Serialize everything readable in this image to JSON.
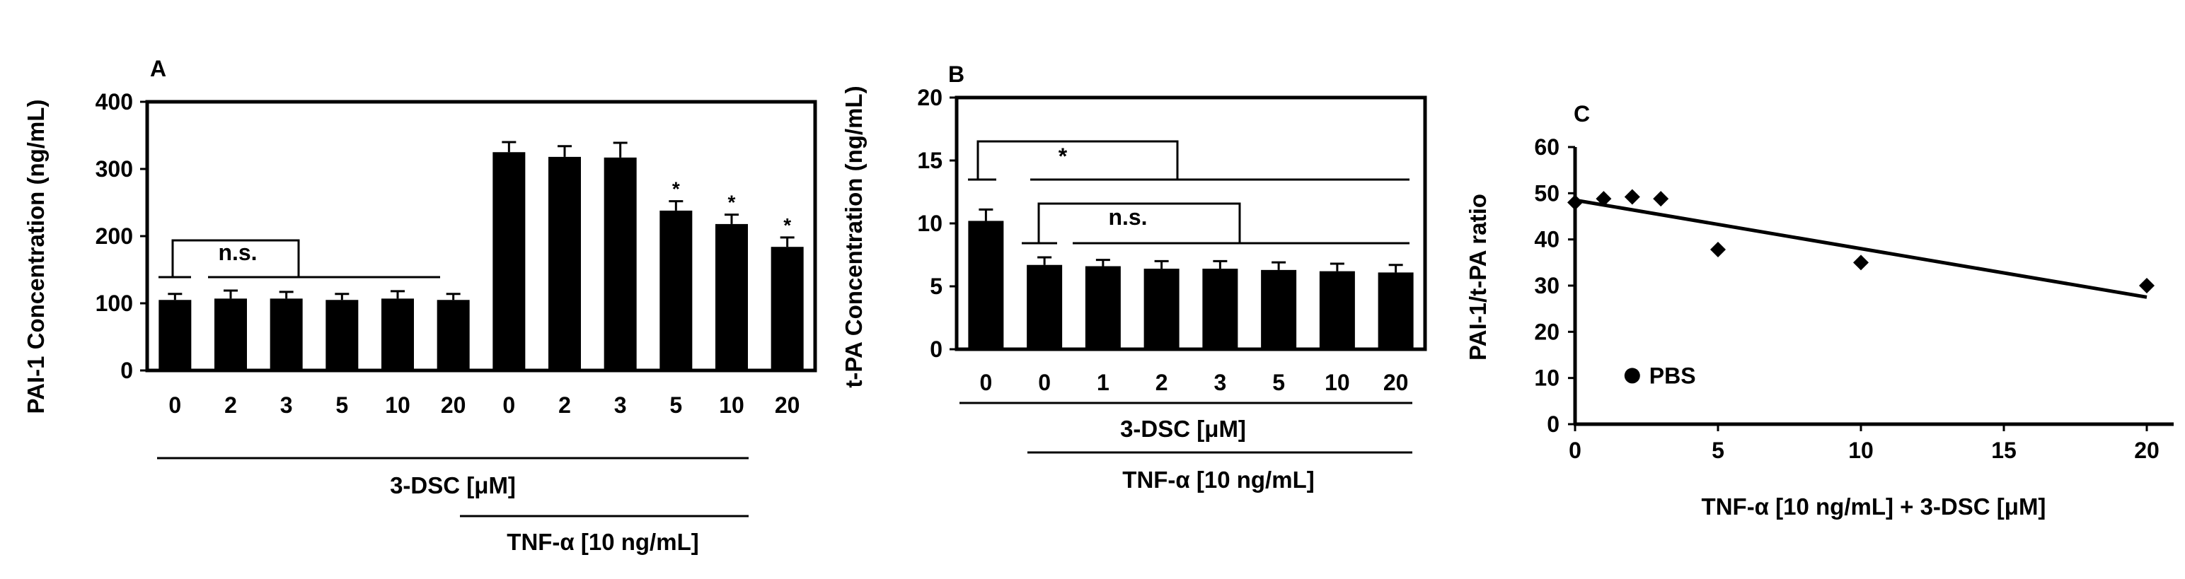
{
  "chart_data": [
    {
      "panel": "A",
      "type": "bar",
      "ylabel": "PAI-1 Concentration (ng/mL)",
      "ylim": [
        0,
        400
      ],
      "yticks": [
        "0",
        "100",
        "200",
        "300",
        "400"
      ],
      "categories": [
        "0",
        "2",
        "3",
        "5",
        "10",
        "20",
        "0",
        "2",
        "3",
        "5",
        "10",
        "20"
      ],
      "values": [
        105,
        107,
        107,
        105,
        107,
        105,
        325,
        318,
        317,
        238,
        218,
        184
      ],
      "errors": [
        9,
        12,
        10,
        9,
        11,
        9,
        15,
        16,
        22,
        14,
        14,
        14
      ],
      "significance": [
        "",
        "",
        "",
        "",
        "",
        "",
        "",
        "",
        "",
        "*",
        "*",
        "*"
      ],
      "bracket_label": "n.s.",
      "group_labels": [
        "3-DSC [μM]",
        "TNF-α [10 ng/mL]"
      ]
    },
    {
      "panel": "B",
      "type": "bar",
      "ylabel": "t-PA Concentration (ng/mL)",
      "ylim": [
        0,
        20
      ],
      "yticks": [
        "0",
        "5",
        "10",
        "15",
        "20"
      ],
      "categories": [
        "0",
        "0",
        "1",
        "2",
        "3",
        "5",
        "10",
        "20"
      ],
      "values": [
        10.2,
        6.7,
        6.6,
        6.4,
        6.4,
        6.3,
        6.2,
        6.1
      ],
      "errors": [
        0.9,
        0.6,
        0.5,
        0.6,
        0.6,
        0.6,
        0.6,
        0.6
      ],
      "bracket_labels": [
        "*",
        "n.s."
      ],
      "group_labels": [
        "3-DSC [μM]",
        "TNF-α [10 ng/mL]"
      ]
    },
    {
      "panel": "C",
      "type": "scatter",
      "xlabel": "TNF-α [10 ng/mL] + 3-DSC [μM]",
      "ylabel": "PAI-1/t-PA ratio",
      "xlim": [
        0,
        20
      ],
      "ylim": [
        0,
        60
      ],
      "xticks": [
        "0",
        "5",
        "10",
        "15",
        "20"
      ],
      "yticks": [
        "0",
        "10",
        "20",
        "30",
        "40",
        "50",
        "60"
      ],
      "points": [
        {
          "x": 0,
          "y": 48
        },
        {
          "x": 1,
          "y": 48.8
        },
        {
          "x": 2,
          "y": 49.2
        },
        {
          "x": 3,
          "y": 48.8
        },
        {
          "x": 5,
          "y": 37.8
        },
        {
          "x": 10,
          "y": 35
        },
        {
          "x": 20,
          "y": 30
        }
      ],
      "trendline": {
        "x": [
          0,
          20
        ],
        "y": [
          48.5,
          27.5
        ]
      },
      "legend_marker": "PBS",
      "pbs_point": {
        "x": 2,
        "y": 10.5
      }
    }
  ]
}
